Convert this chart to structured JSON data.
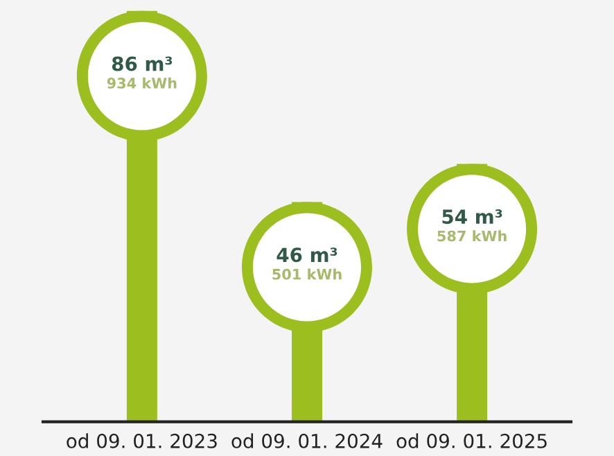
{
  "chart_data": {
    "type": "bar",
    "categories": [
      "od 09. 01. 2023",
      "od 09. 01. 2024",
      "od 09. 01. 2025"
    ],
    "values": [
      86,
      46,
      54
    ],
    "value_labels": [
      "86 m³\n934 kWh",
      "46 m³\n501 kWh",
      "54 m³\n587 kWh"
    ],
    "color": "#9cbf1f"
  }
}
